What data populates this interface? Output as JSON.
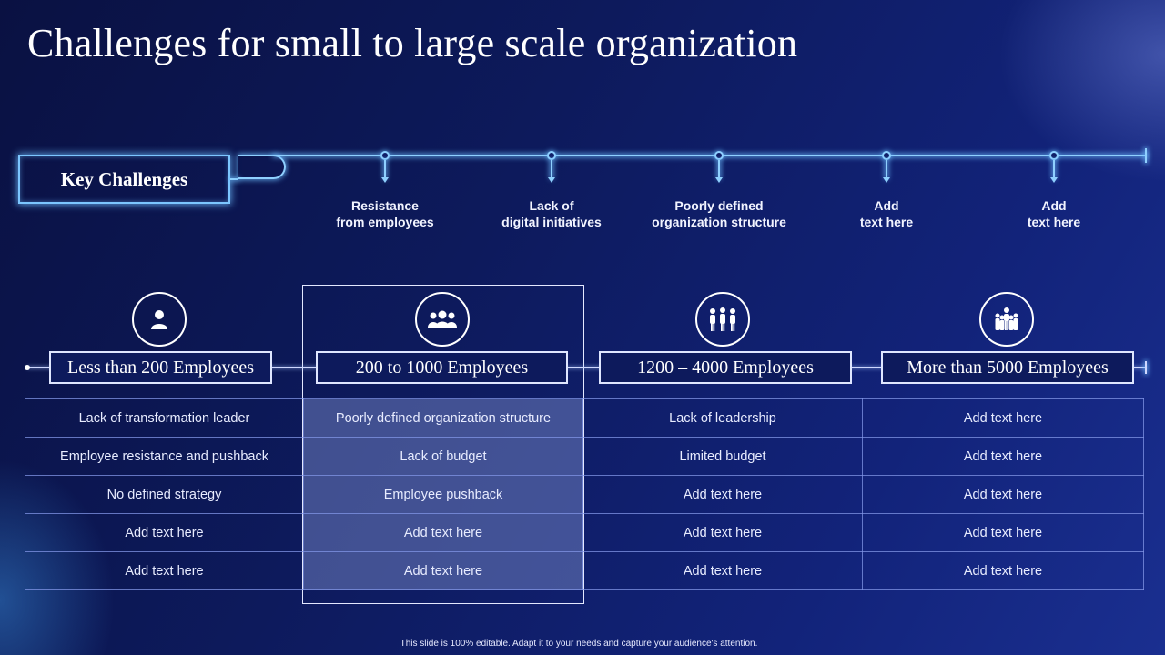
{
  "title": "Challenges for small to large scale organization",
  "key_challenges": {
    "label": "Key Challenges",
    "items": [
      "Resistance\nfrom employees",
      "Lack of\ndigital initiatives",
      "Poorly defined\norganization structure",
      "Add\ntext here",
      "Add\ntext here"
    ]
  },
  "categories": [
    {
      "label": "Less than 200 Employees",
      "icon": "user-icon"
    },
    {
      "label": "200 to 1000 Employees",
      "icon": "group-icon"
    },
    {
      "label": "1200 – 4000 Employees",
      "icon": "team-icon"
    },
    {
      "label": "More than 5000 Employees",
      "icon": "organization-icon"
    }
  ],
  "table": {
    "rows": [
      [
        "Lack of transformation leader",
        "Poorly defined organization structure",
        "Lack of leadership",
        "Add text here"
      ],
      [
        "Employee resistance and pushback",
        "Lack of budget",
        "Limited budget",
        "Add text here"
      ],
      [
        "No defined strategy",
        "Employee pushback",
        "Add text here",
        "Add text here"
      ],
      [
        "Add text here",
        "Add text here",
        "Add text here",
        "Add text here"
      ],
      [
        "Add text here",
        "Add text here",
        "Add text here",
        "Add text here"
      ]
    ],
    "highlighted_column": 1
  },
  "footer": "This slide is 100% editable. Adapt it to your needs and capture your audience's attention.",
  "colors": {
    "background": "#0d1a5c",
    "glow": "#8fd0ff",
    "highlight": "#6e7dbe"
  }
}
